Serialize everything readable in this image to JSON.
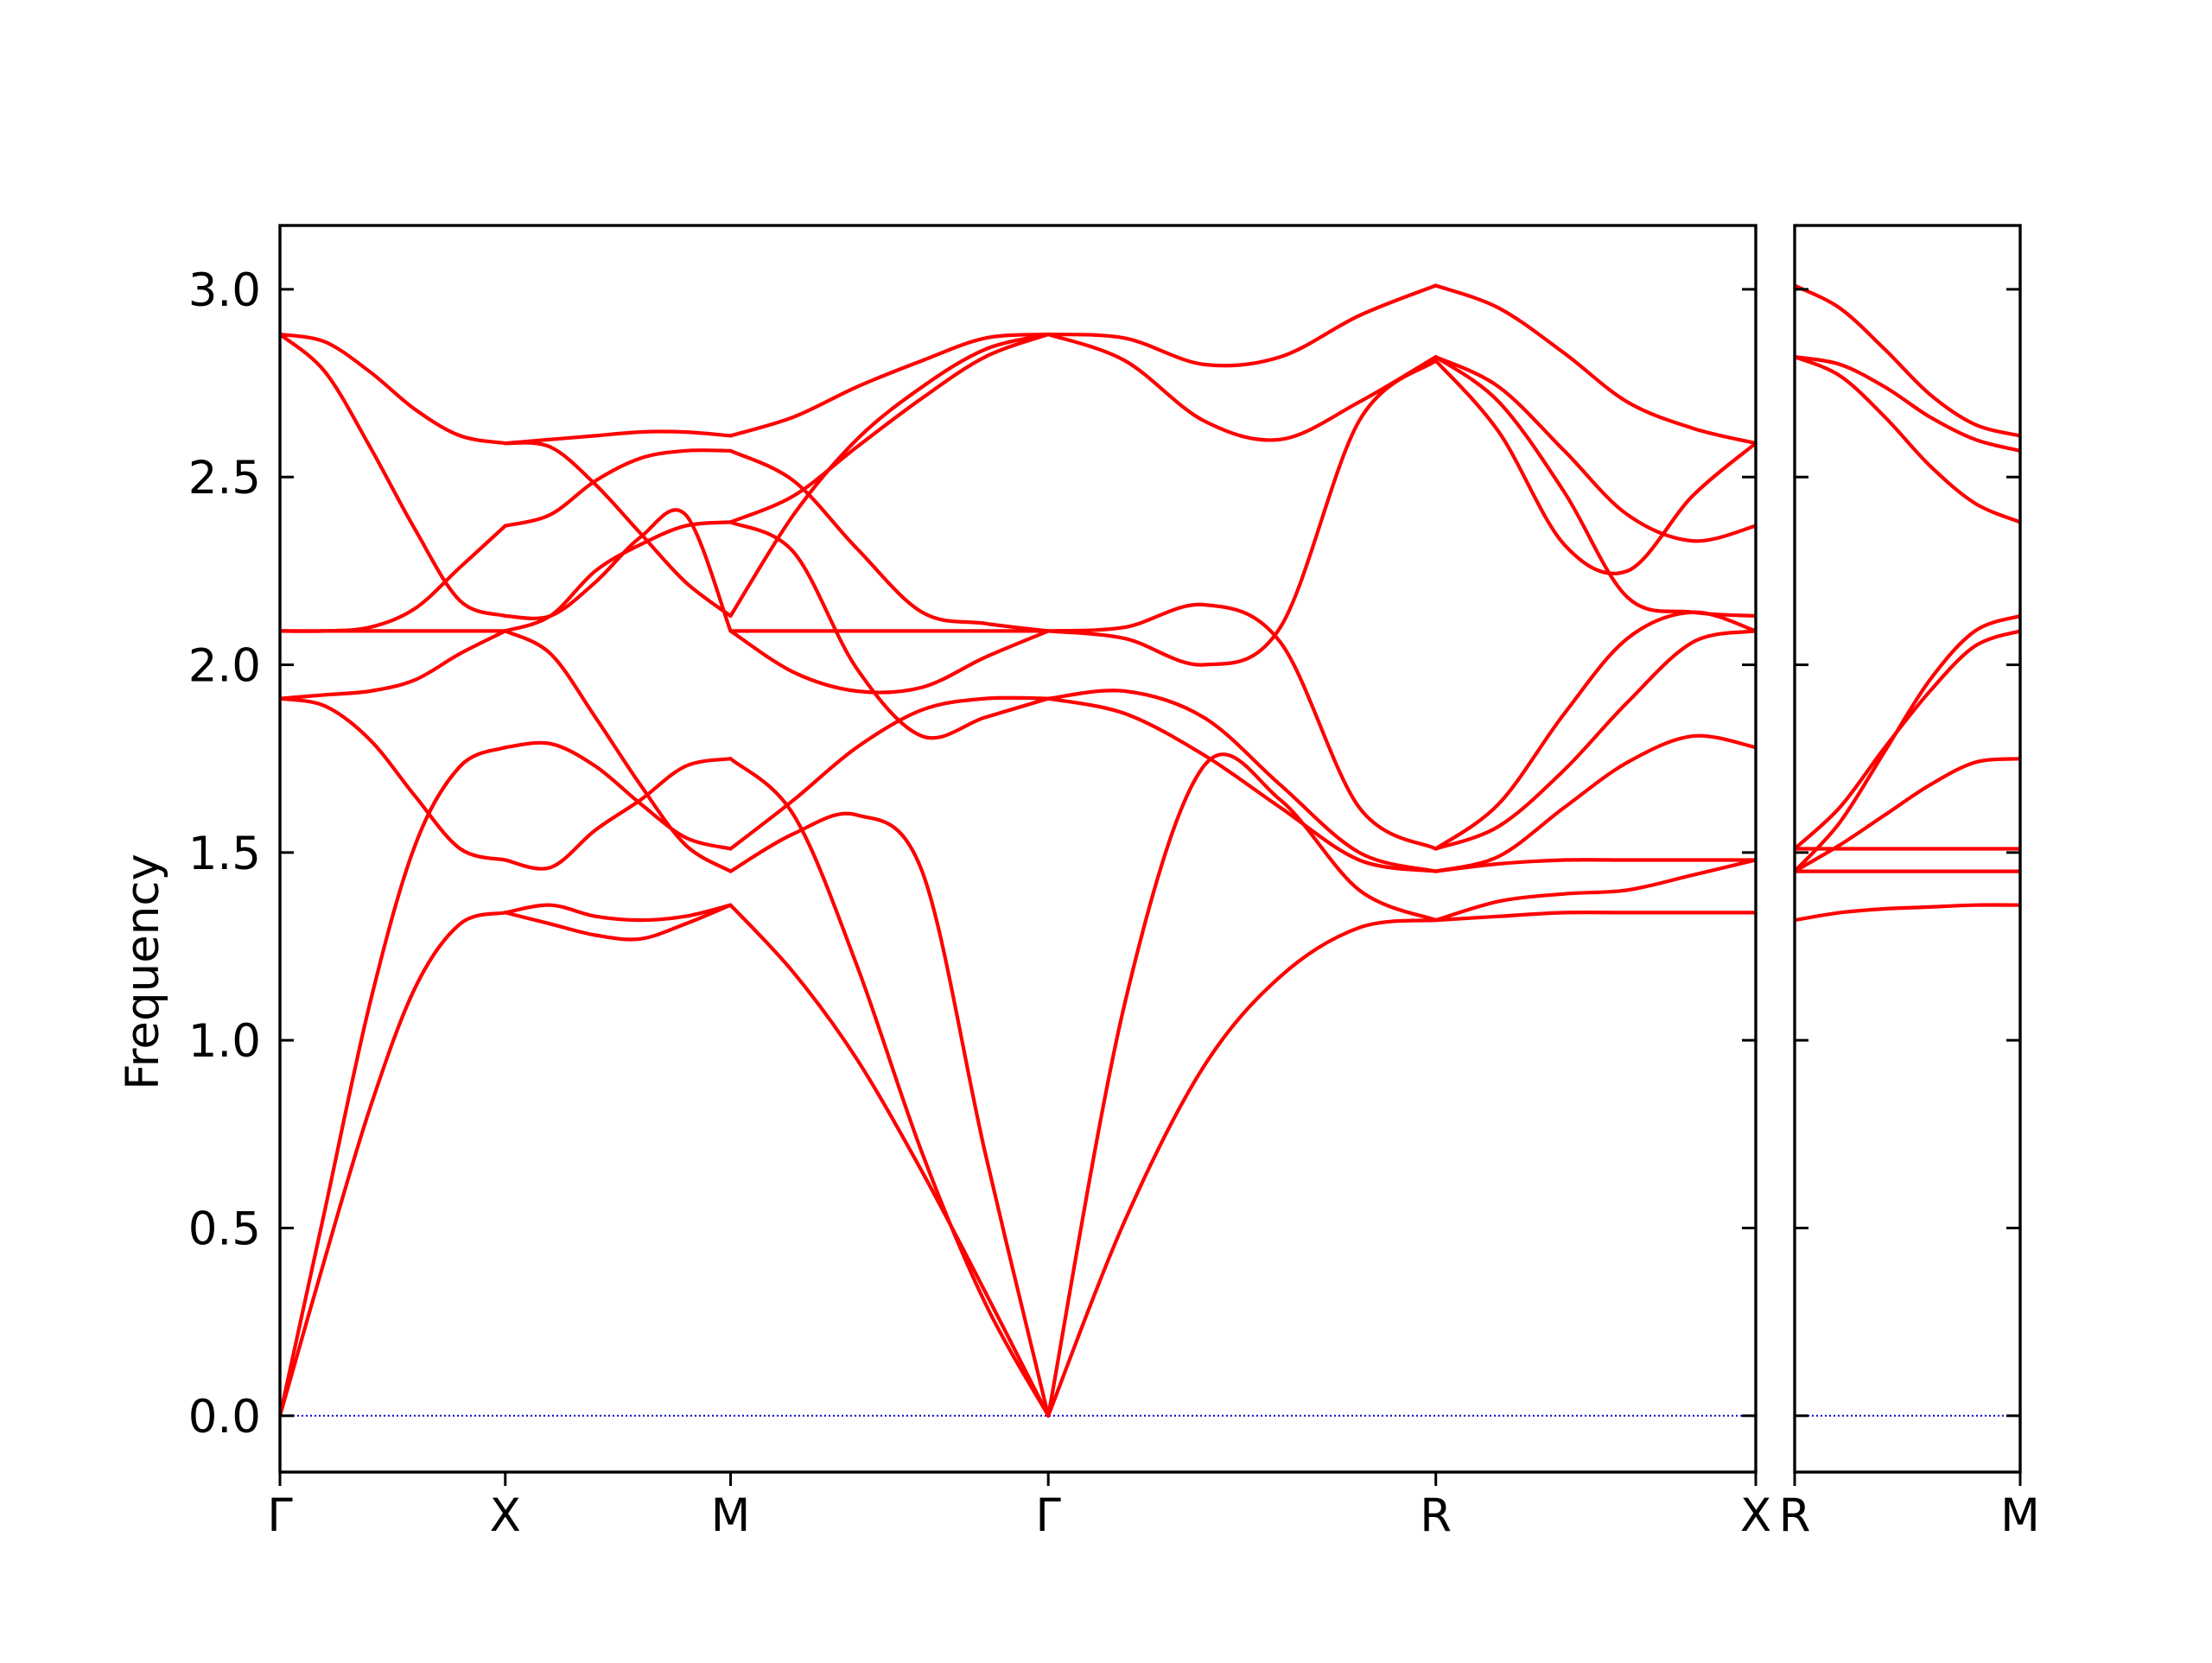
{
  "chart_data": {
    "type": "line",
    "title": "",
    "ylabel": "Frequency",
    "ylim": [
      -0.15,
      3.17
    ],
    "yticks": [
      {
        "value": 0.0,
        "label": "0.0"
      },
      {
        "value": 0.5,
        "label": "0.5"
      },
      {
        "value": 1.0,
        "label": "1.0"
      },
      {
        "value": 1.5,
        "label": "1.5"
      },
      {
        "value": 2.0,
        "label": "2.0"
      },
      {
        "value": 2.5,
        "label": "2.5"
      },
      {
        "value": 3.0,
        "label": "3.0"
      }
    ],
    "line_color": "#ff0000",
    "zero_line_color": "#0000cc",
    "grid": false,
    "panels": [
      {
        "name": "main",
        "xlim": [
          0,
          6.55
        ],
        "xticks": [
          {
            "value": 0.0,
            "label": "Γ"
          },
          {
            "value": 1.0,
            "label": "X"
          },
          {
            "value": 2.0,
            "label": "M"
          },
          {
            "value": 3.41,
            "label": "Γ"
          },
          {
            "value": 5.13,
            "label": "R"
          },
          {
            "value": 6.55,
            "label": "X"
          }
        ],
        "segments": [
          {
            "from": "Γ",
            "to": "X",
            "x": [
              0,
              0.2,
              0.4,
              0.6,
              0.8,
              1.0
            ],
            "bands": [
              [
                0,
                0.42,
                0.82,
                1.14,
                1.31,
                1.34
              ],
              [
                0,
                0.55,
                1.1,
                1.52,
                1.73,
                1.78
              ],
              [
                1.91,
                1.89,
                1.8,
                1.65,
                1.51,
                1.48
              ],
              [
                1.91,
                1.92,
                1.93,
                1.96,
                2.03,
                2.09
              ],
              [
                2.09,
                2.09,
                2.1,
                2.15,
                2.26,
                2.37
              ],
              [
                2.09,
                2.09,
                2.09,
                2.09,
                2.09,
                2.09
              ],
              [
                2.88,
                2.78,
                2.58,
                2.36,
                2.17,
                2.13
              ],
              [
                2.88,
                2.86,
                2.78,
                2.68,
                2.61,
                2.59
              ]
            ]
          },
          {
            "from": "X",
            "to": "M",
            "x": [
              1.0,
              1.2,
              1.4,
              1.6,
              1.8,
              2.0
            ],
            "bands": [
              [
                1.34,
                1.31,
                1.28,
                1.27,
                1.31,
                1.36
              ],
              [
                1.34,
                1.36,
                1.33,
                1.32,
                1.33,
                1.36
              ],
              [
                1.48,
                1.46,
                1.56,
                1.64,
                1.73,
                1.75
              ],
              [
                1.78,
                1.79,
                1.73,
                1.63,
                1.54,
                1.51
              ],
              [
                2.09,
                2.03,
                1.86,
                1.68,
                1.52,
                1.45
              ],
              [
                2.09,
                2.13,
                2.25,
                2.32,
                2.37,
                2.38
              ],
              [
                2.13,
                2.13,
                2.22,
                2.34,
                2.4,
                2.09
              ],
              [
                2.37,
                2.4,
                2.49,
                2.55,
                2.57,
                2.57
              ],
              [
                2.59,
                2.58,
                2.48,
                2.35,
                2.22,
                2.13
              ],
              [
                2.59,
                2.6,
                2.61,
                2.62,
                2.62,
                2.61
              ]
            ]
          },
          {
            "from": "M",
            "to": "Γ",
            "x": [
              2.0,
              2.28,
              2.56,
              2.85,
              3.13,
              3.41
            ],
            "bands": [
              [
                1.36,
                1.18,
                0.95,
                0.65,
                0.33,
                0
              ],
              [
                1.75,
                1.6,
                1.2,
                0.7,
                0.3,
                0
              ],
              [
                1.45,
                1.55,
                1.6,
                1.45,
                0.7,
                0
              ],
              [
                1.51,
                1.64,
                1.78,
                1.88,
                1.91,
                1.91
              ],
              [
                2.38,
                2.3,
                1.99,
                1.81,
                1.86,
                1.91
              ],
              [
                2.09,
                2.09,
                2.09,
                2.09,
                2.09,
                2.09
              ],
              [
                2.09,
                1.98,
                1.93,
                1.94,
                2.02,
                2.09
              ],
              [
                2.13,
                2.4,
                2.6,
                2.74,
                2.84,
                2.88
              ],
              [
                2.38,
                2.45,
                2.58,
                2.71,
                2.82,
                2.88
              ],
              [
                2.57,
                2.49,
                2.31,
                2.14,
                2.11,
                2.09
              ],
              [
                2.61,
                2.66,
                2.74,
                2.81,
                2.87,
                2.88
              ]
            ]
          },
          {
            "from": "Γ",
            "to": "R",
            "x": [
              3.41,
              3.75,
              4.1,
              4.44,
              4.79,
              5.13
            ],
            "bands": [
              [
                0,
                0.52,
                0.93,
                1.17,
                1.3,
                1.32
              ],
              [
                0,
                1.1,
                1.73,
                1.64,
                1.4,
                1.32
              ],
              [
                1.91,
                1.87,
                1.76,
                1.62,
                1.48,
                1.45
              ],
              [
                1.91,
                1.93,
                1.86,
                1.68,
                1.5,
                1.45
              ],
              [
                2.09,
                2.1,
                2.16,
                2.06,
                1.62,
                1.51
              ],
              [
                2.09,
                2.07,
                2.0,
                2.1,
                2.65,
                2.81
              ],
              [
                2.88,
                2.81,
                2.65,
                2.6,
                2.7,
                2.82
              ],
              [
                2.88,
                2.87,
                2.8,
                2.82,
                2.93,
                3.01
              ]
            ]
          },
          {
            "from": "R",
            "to": "X",
            "x": [
              5.13,
              5.41,
              5.7,
              5.98,
              6.27,
              6.55
            ],
            "bands": [
              [
                1.32,
                1.33,
                1.34,
                1.34,
                1.34,
                1.34
              ],
              [
                1.32,
                1.37,
                1.39,
                1.4,
                1.44,
                1.48
              ],
              [
                1.45,
                1.47,
                1.48,
                1.48,
                1.48,
                1.48
              ],
              [
                1.45,
                1.49,
                1.62,
                1.74,
                1.81,
                1.78
              ],
              [
                1.51,
                1.63,
                1.87,
                2.07,
                2.14,
                2.09
              ],
              [
                1.51,
                1.57,
                1.72,
                1.9,
                2.06,
                2.09
              ],
              [
                2.81,
                2.62,
                2.32,
                2.25,
                2.45,
                2.59
              ],
              [
                2.82,
                2.7,
                2.46,
                2.18,
                2.14,
                2.13
              ],
              [
                2.82,
                2.74,
                2.57,
                2.4,
                2.33,
                2.37
              ],
              [
                3.01,
                2.95,
                2.83,
                2.7,
                2.63,
                2.59
              ]
            ]
          }
        ]
      },
      {
        "name": "side",
        "xlim": [
          0,
          1.0
        ],
        "xticks": [
          {
            "value": 0.0,
            "label": "R"
          },
          {
            "value": 1.0,
            "label": "M"
          }
        ],
        "segments": [
          {
            "from": "R",
            "to": "M",
            "x": [
              0,
              0.2,
              0.4,
              0.6,
              0.8,
              1.0
            ],
            "bands": [
              [
                1.32,
                1.34,
                1.35,
                1.355,
                1.36,
                1.36
              ],
              [
                1.45,
                1.45,
                1.45,
                1.45,
                1.45,
                1.45
              ],
              [
                1.51,
                1.51,
                1.51,
                1.51,
                1.51,
                1.51
              ],
              [
                1.45,
                1.52,
                1.6,
                1.68,
                1.74,
                1.75
              ],
              [
                1.51,
                1.62,
                1.78,
                1.93,
                2.05,
                2.09
              ],
              [
                1.45,
                1.58,
                1.77,
                1.96,
                2.09,
                2.13
              ],
              [
                2.82,
                2.77,
                2.66,
                2.53,
                2.43,
                2.38
              ],
              [
                2.82,
                2.8,
                2.74,
                2.66,
                2.6,
                2.57
              ],
              [
                3.01,
                2.95,
                2.84,
                2.72,
                2.64,
                2.61
              ]
            ]
          }
        ]
      }
    ]
  }
}
